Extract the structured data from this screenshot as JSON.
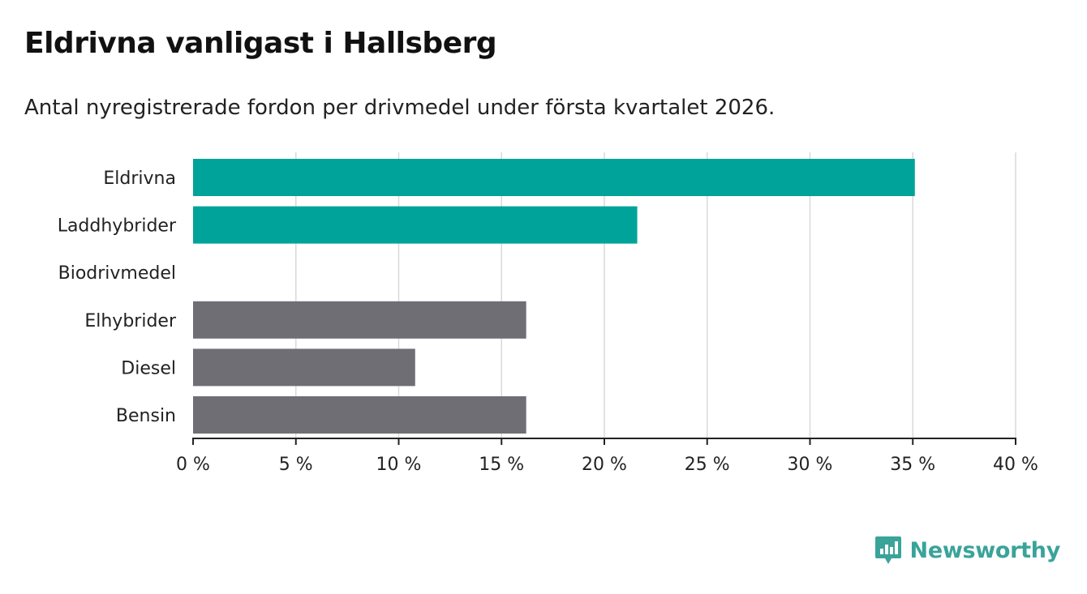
{
  "title": "Eldrivna vanligast i Hallsberg",
  "subtitle": "Antal nyregistrerade fordon per drivmedel under första kvartalet 2026.",
  "brand": {
    "name": "Newsworthy",
    "color": "#3aa39a"
  },
  "colors": {
    "highlight": "#00a39a",
    "default": "#6f6e74",
    "grid": "#d9d9d9",
    "axis": "#222222"
  },
  "chart_data": {
    "type": "bar",
    "orientation": "horizontal",
    "title": "Eldrivna vanligast i Hallsberg",
    "xlabel": "",
    "ylabel": "",
    "categories": [
      "Eldrivna",
      "Laddhybrider",
      "Biodrivmedel",
      "Elhybrider",
      "Diesel",
      "Bensin"
    ],
    "values": [
      35.1,
      21.6,
      0,
      16.2,
      10.8,
      16.2
    ],
    "highlight": [
      true,
      true,
      false,
      false,
      false,
      false
    ],
    "xlim": [
      0,
      40
    ],
    "ticks": [
      0,
      5,
      10,
      15,
      20,
      25,
      30,
      35,
      40
    ],
    "tick_labels": [
      "0 %",
      "5 %",
      "10 %",
      "15 %",
      "20 %",
      "25 %",
      "30 %",
      "35 %",
      "40 %"
    ],
    "grid": true
  }
}
